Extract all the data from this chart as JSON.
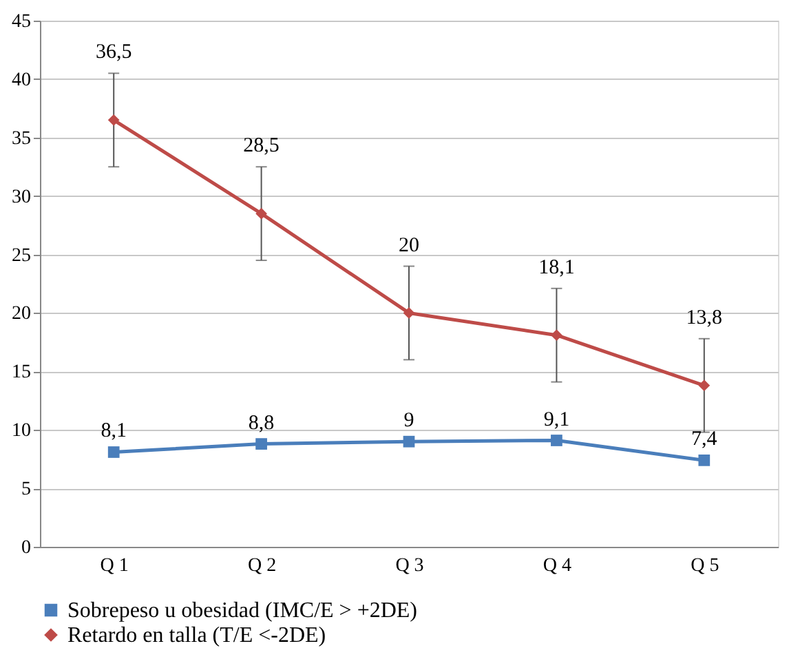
{
  "chart_data": {
    "type": "line",
    "categories": [
      "Q 1",
      "Q 2",
      "Q 3",
      "Q 4",
      "Q 5"
    ],
    "series": [
      {
        "name": "Sobrepeso u obesidad (IMC/E > +2DE)",
        "color": "#4a7ebb",
        "marker": "square",
        "values": [
          8.1,
          8.8,
          9,
          9.1,
          7.4
        ],
        "value_labels": [
          "8,1",
          "8,8",
          "9",
          "9,1",
          "7,4"
        ]
      },
      {
        "name": "Retardo en talla (T/E <-2DE)",
        "color": "#be4b48",
        "marker": "diamond",
        "values": [
          36.5,
          28.5,
          20,
          18.1,
          13.8
        ],
        "value_labels": [
          "36,5",
          "28,5",
          "20",
          "18,1",
          "13,8"
        ],
        "errors": [
          4,
          4,
          4,
          4,
          4
        ]
      }
    ],
    "ylim": [
      0,
      45
    ],
    "yticks": [
      0,
      5,
      10,
      15,
      20,
      25,
      30,
      35,
      40,
      45
    ],
    "grid": "y",
    "legend": "bottom",
    "line_style": "solid"
  }
}
